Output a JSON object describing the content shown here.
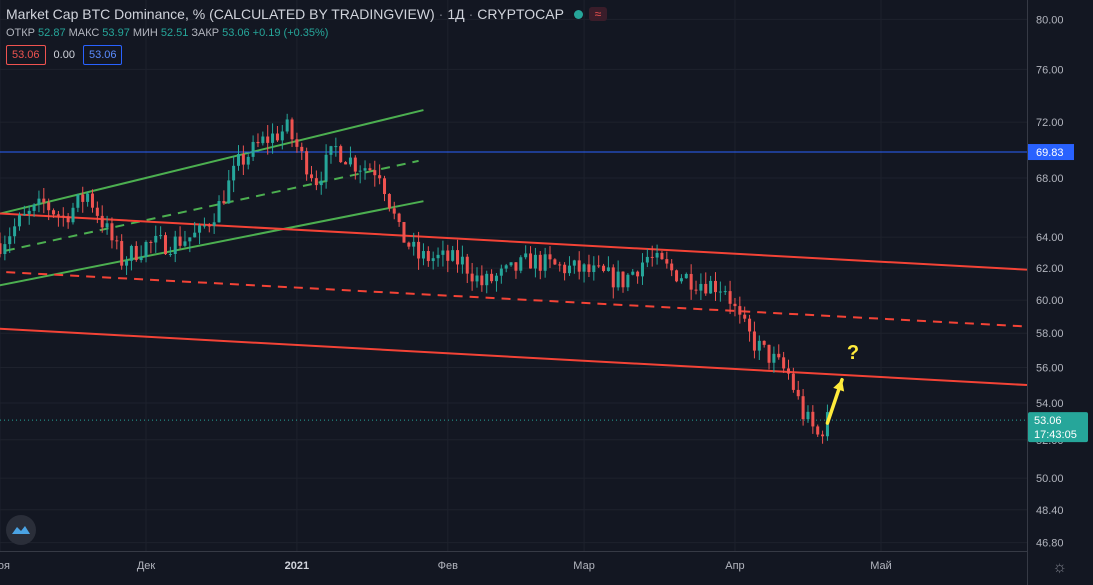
{
  "header": {
    "title": "Market Cap BTC Dominance, % (CALCULATED BY TRADINGVIEW)",
    "interval": "1Д",
    "exchange": "CRYPTOCAP",
    "wave_icon": "≈",
    "ohlc": [
      {
        "label": "ОТКР",
        "value": "52.87"
      },
      {
        "label": "МАКС",
        "value": "53.97"
      },
      {
        "label": "МИН",
        "value": "52.51"
      },
      {
        "label": "ЗАКР",
        "value": "53.06"
      },
      {
        "label": "",
        "value": "+0.19 (+0.35%)"
      }
    ],
    "badges": [
      "53.06",
      "0.00",
      "53.06"
    ]
  },
  "icons": {
    "logo": "tradingview-logo-icon",
    "settings": "gear-icon"
  },
  "colors": {
    "background": "#131722",
    "up": "#26a69a",
    "down": "#ef5350",
    "channel_green": "#4caf50",
    "channel_red": "#f44336",
    "hline_blue": "#2962ff",
    "arrow": "#ffeb3b",
    "axis_text": "#b2b5be"
  },
  "chart_data": {
    "type": "candlestick",
    "title": "Market Cap BTC Dominance, % (CALCULATED BY TRADINGVIEW)",
    "scale": "log",
    "ylim": [
      46.4,
      81.6
    ],
    "xlim": [
      "2020-11-01",
      "2021-05-31"
    ],
    "y_ticks": [
      "80.00",
      "76.00",
      "72.00",
      "68.00",
      "64.00",
      "62.00",
      "60.00",
      "58.00",
      "56.00",
      "54.00",
      "52.00",
      "50.00",
      "48.40",
      "46.80"
    ],
    "x_ticks": [
      {
        "date": "2020-11-01",
        "label": "Ноя",
        "bold": false
      },
      {
        "date": "2020-12-01",
        "label": "Дек",
        "bold": false
      },
      {
        "date": "2021-01-01",
        "label": "2021",
        "bold": true
      },
      {
        "date": "2021-02-01",
        "label": "Фев",
        "bold": false
      },
      {
        "date": "2021-03-01",
        "label": "Мар",
        "bold": false
      },
      {
        "date": "2021-04-01",
        "label": "Апр",
        "bold": false
      },
      {
        "date": "2021-05-01",
        "label": "Май",
        "bold": false
      }
    ],
    "close_path": [
      [
        "2020-11-01",
        63.6
      ],
      [
        "2020-11-05",
        65.0
      ],
      [
        "2020-11-10",
        66.2
      ],
      [
        "2020-11-14",
        65.3
      ],
      [
        "2020-11-19",
        66.9
      ],
      [
        "2020-11-23",
        64.4
      ],
      [
        "2020-11-26",
        62.5
      ],
      [
        "2020-12-01",
        63.5
      ],
      [
        "2020-12-06",
        63.6
      ],
      [
        "2020-12-12",
        64.2
      ],
      [
        "2020-12-16",
        66.1
      ],
      [
        "2020-12-20",
        69.0
      ],
      [
        "2020-12-25",
        70.6
      ],
      [
        "2020-12-30",
        71.5
      ],
      [
        "2021-01-02",
        69.5
      ],
      [
        "2021-01-05",
        67.9
      ],
      [
        "2021-01-09",
        70.1
      ],
      [
        "2021-01-13",
        69.0
      ],
      [
        "2021-01-18",
        68.5
      ],
      [
        "2021-01-22",
        64.3
      ],
      [
        "2021-01-26",
        62.7
      ],
      [
        "2021-01-31",
        62.6
      ],
      [
        "2021-02-04",
        62.4
      ],
      [
        "2021-02-08",
        61.0
      ],
      [
        "2021-02-14",
        61.8
      ],
      [
        "2021-02-18",
        62.5
      ],
      [
        "2021-02-23",
        62.1
      ],
      [
        "2021-02-28",
        61.9
      ],
      [
        "2021-03-04",
        61.6
      ],
      [
        "2021-03-09",
        61.2
      ],
      [
        "2021-03-14",
        62.7
      ],
      [
        "2021-03-19",
        61.8
      ],
      [
        "2021-03-24",
        61.2
      ],
      [
        "2021-03-30",
        60.8
      ],
      [
        "2021-04-02",
        58.7
      ],
      [
        "2021-04-05",
        57.4
      ],
      [
        "2021-04-09",
        56.4
      ],
      [
        "2021-04-12",
        55.6
      ],
      [
        "2021-04-15",
        53.4
      ],
      [
        "2021-04-18",
        52.2
      ],
      [
        "2021-04-20",
        53.06
      ]
    ],
    "annotations": {
      "current_price": {
        "value": 53.06,
        "label": "53.06",
        "timer": "17:43:05"
      },
      "horizontal_line": {
        "value": 69.83,
        "label": "69.83"
      },
      "question_mark": "?",
      "arrow": {
        "from": [
          "2021-04-20",
          52.9
        ],
        "to": [
          "2021-04-23",
          55.3
        ]
      },
      "question_mark_at": [
        "2021-04-24",
        56.5
      ],
      "channels": [
        {
          "color": "green",
          "style": "solid",
          "points": [
            [
              "2020-10-30",
              65.4
            ],
            [
              "2021-01-27",
              72.9
            ]
          ]
        },
        {
          "color": "green",
          "style": "dashed",
          "points": [
            [
              "2020-10-30",
              62.9
            ],
            [
              "2021-01-26",
              69.2
            ]
          ]
        },
        {
          "color": "green",
          "style": "solid",
          "points": [
            [
              "2020-10-30",
              60.8
            ],
            [
              "2021-01-27",
              66.4
            ]
          ]
        },
        {
          "color": "red",
          "style": "solid",
          "points": [
            [
              "2020-10-30",
              65.6
            ],
            [
              "2021-05-31",
              61.9
            ]
          ]
        },
        {
          "color": "red",
          "style": "dashed",
          "points": [
            [
              "2020-10-30",
              61.8
            ],
            [
              "2021-05-31",
              58.4
            ]
          ]
        },
        {
          "color": "red",
          "style": "solid",
          "points": [
            [
              "2020-10-30",
              58.3
            ],
            [
              "2021-05-31",
              55.0
            ]
          ]
        }
      ]
    }
  }
}
